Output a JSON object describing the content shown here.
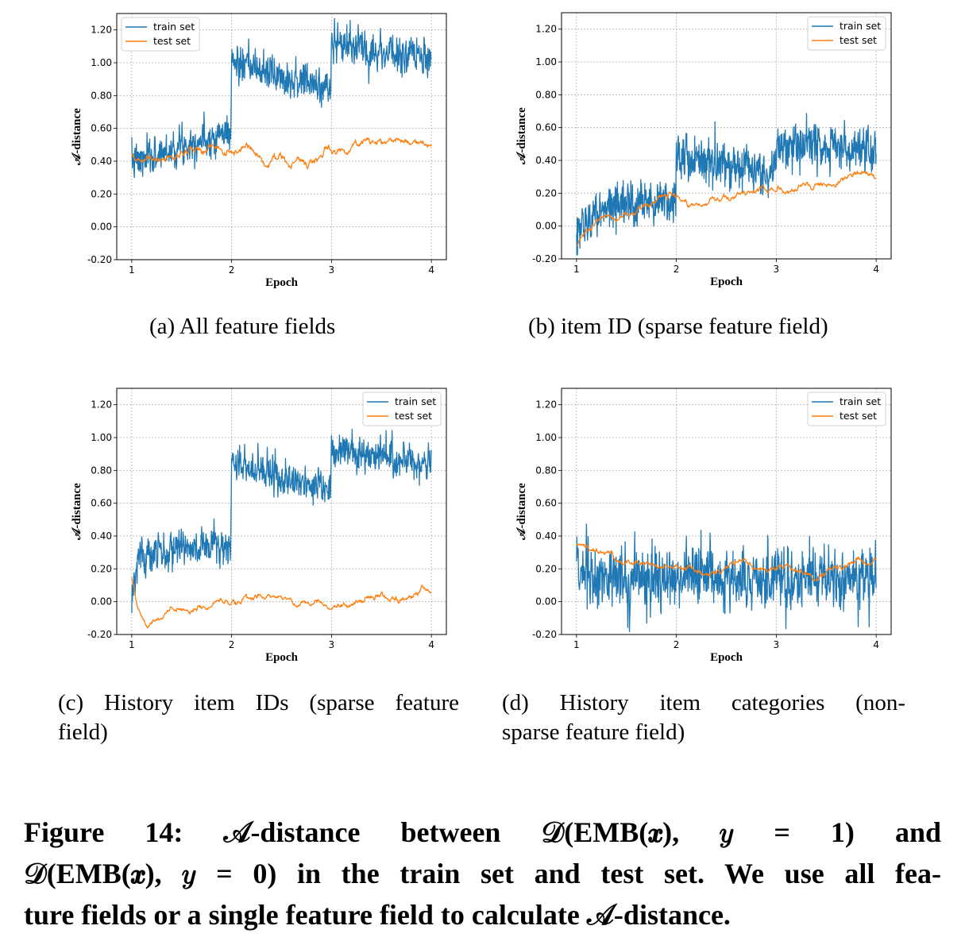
{
  "colors": {
    "train": "#1f77b4",
    "test": "#ff7f0e",
    "grid": "#b0b0b0"
  },
  "chart_data": [
    {
      "type": "line",
      "id": "a",
      "xlabel": "Epoch",
      "ylabel": "𝒜-distance",
      "xlim": [
        0.85,
        4.15
      ],
      "ylim": [
        -0.2,
        1.3
      ],
      "xticks": [
        1,
        2,
        3,
        4
      ],
      "xtick_labels": [
        "1",
        "2",
        "3",
        "4"
      ],
      "yticks": [
        -0.2,
        0,
        0.2,
        0.4,
        0.6,
        0.8,
        1.0,
        1.2
      ],
      "ytick_labels": [
        "-0.20",
        "0.00",
        "0.20",
        "0.40",
        "0.60",
        "0.80",
        "1.00",
        "1.20"
      ],
      "grid": true,
      "legend_position": "top-left",
      "series": [
        {
          "name": "train set",
          "color_key": "train",
          "noise_std": 0.055,
          "trend": [
            [
              1.0,
              0.4
            ],
            [
              1.1,
              0.4
            ],
            [
              1.5,
              0.5
            ],
            [
              1.99,
              0.58
            ],
            [
              2.0,
              1.0
            ],
            [
              2.5,
              0.92
            ],
            [
              2.99,
              0.84
            ],
            [
              3.0,
              1.12
            ],
            [
              3.5,
              1.07
            ],
            [
              4.0,
              1.01
            ]
          ]
        },
        {
          "name": "test set",
          "color_key": "test",
          "noise_std": 0.02,
          "trend": [
            [
              1.0,
              0.42
            ],
            [
              1.3,
              0.4
            ],
            [
              1.6,
              0.43
            ],
            [
              1.8,
              0.47
            ],
            [
              2.0,
              0.44
            ],
            [
              2.2,
              0.46
            ],
            [
              2.35,
              0.39
            ],
            [
              2.6,
              0.42
            ],
            [
              2.9,
              0.4
            ],
            [
              3.0,
              0.47
            ],
            [
              3.3,
              0.51
            ],
            [
              3.6,
              0.5
            ],
            [
              3.9,
              0.53
            ],
            [
              4.0,
              0.5
            ]
          ]
        }
      ]
    },
    {
      "type": "line",
      "id": "b",
      "xlabel": "Epoch",
      "ylabel": "𝒜-distance",
      "xlim": [
        0.85,
        4.15
      ],
      "ylim": [
        -0.2,
        1.3
      ],
      "xticks": [
        1,
        2,
        3,
        4
      ],
      "xtick_labels": [
        "1",
        "2",
        "3",
        "4"
      ],
      "yticks": [
        -0.2,
        0,
        0.2,
        0.4,
        0.6,
        0.8,
        1.0,
        1.2
      ],
      "ytick_labels": [
        "-0.20",
        "0.00",
        "0.20",
        "0.40",
        "0.60",
        "0.80",
        "1.00",
        "1.20"
      ],
      "grid": true,
      "legend_position": "top-right",
      "series": [
        {
          "name": "train set",
          "color_key": "train",
          "noise_std": 0.07,
          "trend": [
            [
              1.0,
              -0.05
            ],
            [
              1.1,
              0.05
            ],
            [
              1.4,
              0.13
            ],
            [
              1.99,
              0.17
            ],
            [
              2.0,
              0.42
            ],
            [
              2.5,
              0.38
            ],
            [
              2.99,
              0.33
            ],
            [
              3.0,
              0.5
            ],
            [
              3.5,
              0.48
            ],
            [
              4.0,
              0.44
            ]
          ]
        },
        {
          "name": "test set",
          "color_key": "test",
          "noise_std": 0.015,
          "trend": [
            [
              1.0,
              -0.12
            ],
            [
              1.1,
              -0.05
            ],
            [
              1.3,
              0.03
            ],
            [
              1.6,
              0.1
            ],
            [
              1.85,
              0.17
            ],
            [
              2.0,
              0.16
            ],
            [
              2.3,
              0.13
            ],
            [
              2.6,
              0.19
            ],
            [
              2.8,
              0.22
            ],
            [
              3.0,
              0.22
            ],
            [
              3.3,
              0.26
            ],
            [
              3.6,
              0.28
            ],
            [
              3.8,
              0.32
            ],
            [
              4.0,
              0.29
            ]
          ]
        }
      ]
    },
    {
      "type": "line",
      "id": "c",
      "xlabel": "Epoch",
      "ylabel": "𝒜-distance",
      "xlim": [
        0.85,
        4.15
      ],
      "ylim": [
        -0.2,
        1.3
      ],
      "xticks": [
        1,
        2,
        3,
        4
      ],
      "xtick_labels": [
        "1",
        "2",
        "3",
        "4"
      ],
      "yticks": [
        -0.2,
        0,
        0.2,
        0.4,
        0.6,
        0.8,
        1.0,
        1.2
      ],
      "ytick_labels": [
        "-0.20",
        "0.00",
        "0.20",
        "0.40",
        "0.60",
        "0.80",
        "1.00",
        "1.20"
      ],
      "grid": true,
      "legend_position": "top-right",
      "series": [
        {
          "name": "train set",
          "color_key": "train",
          "noise_std": 0.055,
          "trend": [
            [
              1.0,
              0.05
            ],
            [
              1.05,
              0.25
            ],
            [
              1.2,
              0.3
            ],
            [
              1.99,
              0.34
            ],
            [
              2.0,
              0.85
            ],
            [
              2.5,
              0.75
            ],
            [
              2.99,
              0.68
            ],
            [
              3.0,
              0.93
            ],
            [
              3.5,
              0.88
            ],
            [
              4.0,
              0.84
            ]
          ]
        },
        {
          "name": "test set",
          "color_key": "test",
          "noise_std": 0.015,
          "trend": [
            [
              1.0,
              0.15
            ],
            [
              1.05,
              0.0
            ],
            [
              1.15,
              -0.12
            ],
            [
              1.4,
              -0.06
            ],
            [
              1.7,
              -0.03
            ],
            [
              2.0,
              -0.01
            ],
            [
              2.3,
              0.04
            ],
            [
              2.6,
              0.0
            ],
            [
              3.0,
              -0.04
            ],
            [
              3.3,
              0.0
            ],
            [
              3.5,
              0.04
            ],
            [
              3.8,
              0.03
            ],
            [
              3.9,
              0.07
            ],
            [
              4.0,
              0.02
            ]
          ]
        }
      ]
    },
    {
      "type": "line",
      "id": "d",
      "xlabel": "Epoch",
      "ylabel": "𝒜-distance",
      "xlim": [
        0.85,
        4.15
      ],
      "ylim": [
        -0.2,
        1.3
      ],
      "xticks": [
        1,
        2,
        3,
        4
      ],
      "xtick_labels": [
        "1",
        "2",
        "3",
        "4"
      ],
      "yticks": [
        -0.2,
        0,
        0.2,
        0.4,
        0.6,
        0.8,
        1.0,
        1.2
      ],
      "ytick_labels": [
        "-0.20",
        "0.00",
        "0.20",
        "0.40",
        "0.60",
        "0.80",
        "1.00",
        "1.20"
      ],
      "grid": true,
      "legend_position": "top-right",
      "series": [
        {
          "name": "train set",
          "color_key": "train",
          "noise_std": 0.09,
          "trend": [
            [
              1.0,
              0.18
            ],
            [
              1.5,
              0.15
            ],
            [
              2.0,
              0.13
            ],
            [
              2.5,
              0.14
            ],
            [
              3.0,
              0.14
            ],
            [
              3.5,
              0.15
            ],
            [
              4.0,
              0.15
            ]
          ]
        },
        {
          "name": "test set",
          "color_key": "test",
          "noise_std": 0.015,
          "trend": [
            [
              1.0,
              0.36
            ],
            [
              1.1,
              0.32
            ],
            [
              1.3,
              0.3
            ],
            [
              1.45,
              0.23
            ],
            [
              1.7,
              0.23
            ],
            [
              2.0,
              0.21
            ],
            [
              2.35,
              0.16
            ],
            [
              2.7,
              0.24
            ],
            [
              2.8,
              0.22
            ],
            [
              3.0,
              0.19
            ],
            [
              3.4,
              0.15
            ],
            [
              3.7,
              0.21
            ],
            [
              3.8,
              0.25
            ],
            [
              4.0,
              0.26
            ]
          ]
        }
      ]
    }
  ],
  "subcaptions": {
    "a": [
      "(a)  All feature fields"
    ],
    "b": [
      "(b)  item ID (sparse feature field)"
    ],
    "c": [
      "(c)  History item IDs (sparse feature",
      "field)"
    ],
    "d": [
      "(d)  History  item  categories  (non-",
      "sparse feature field)"
    ]
  },
  "caption": [
    "Figure 14: 𝒜-distance between 𝒟(EMB(𝒙), 𝑦  =  1) and",
    "𝒟(EMB(𝒙), 𝑦 = 0) in the train set and test set. We use all fea-",
    "ture fields or a single feature field to calculate 𝒜-distance."
  ]
}
